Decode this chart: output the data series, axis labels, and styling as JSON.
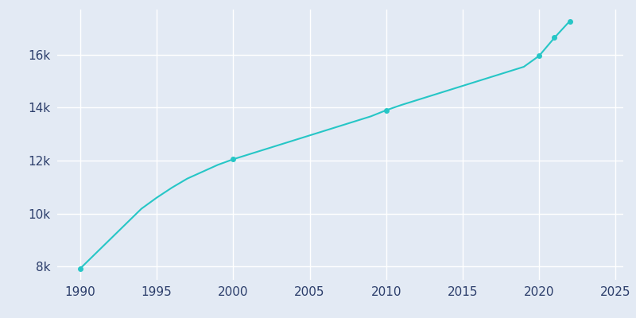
{
  "years": [
    1990,
    1991,
    1992,
    1993,
    1994,
    1995,
    1996,
    1997,
    1998,
    1999,
    2000,
    2001,
    2002,
    2003,
    2004,
    2005,
    2006,
    2007,
    2008,
    2009,
    2010,
    2011,
    2012,
    2013,
    2014,
    2015,
    2016,
    2017,
    2018,
    2019,
    2020,
    2021,
    2022
  ],
  "population": [
    7926,
    8490,
    9054,
    9618,
    10182,
    10600,
    10980,
    11320,
    11580,
    11840,
    12050,
    12230,
    12410,
    12590,
    12770,
    12950,
    13130,
    13310,
    13490,
    13670,
    13900,
    14100,
    14280,
    14460,
    14640,
    14820,
    15000,
    15180,
    15360,
    15540,
    15954,
    16636,
    17264
  ],
  "marker_years": [
    1990,
    2000,
    2010,
    2020,
    2021,
    2022
  ],
  "marker_values": [
    7926,
    12050,
    13900,
    15954,
    16636,
    17264
  ],
  "line_color": "#26C6C6",
  "marker_color": "#26C6C6",
  "bg_color": "#E3EAF4",
  "plot_bg_color": "#E3EAF4",
  "grid_color": "#FFFFFF",
  "tick_label_color": "#2C3E6B",
  "xlim": [
    1988.5,
    2025.5
  ],
  "ylim": [
    7500,
    17700
  ],
  "yticks": [
    8000,
    10000,
    12000,
    14000,
    16000
  ],
  "ytick_labels": [
    "8k",
    "10k",
    "12k",
    "14k",
    "16k"
  ],
  "xticks": [
    1990,
    1995,
    2000,
    2005,
    2010,
    2015,
    2020,
    2025
  ]
}
